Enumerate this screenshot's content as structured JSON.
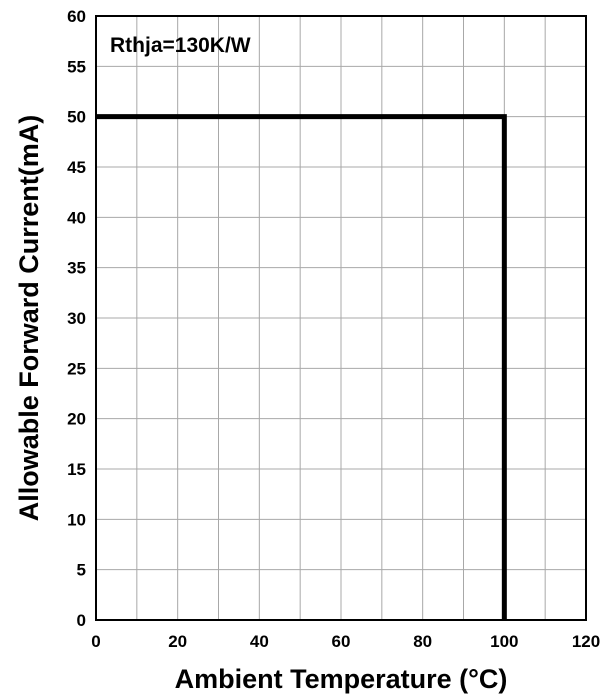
{
  "chart_data": {
    "type": "line",
    "xlabel": "Ambient Temperature (°C)",
    "ylabel": "Allowable Forward Current(mA)",
    "xlim": [
      0,
      120
    ],
    "ylim": [
      0,
      60
    ],
    "xticks": [
      "0",
      "20",
      "40",
      "60",
      "80",
      "100",
      "120"
    ],
    "yticks": [
      "0",
      "5",
      "10",
      "15",
      "20",
      "25",
      "30",
      "35",
      "40",
      "45",
      "50",
      "55",
      "60"
    ],
    "grid": true,
    "annotation": "Rthja=130K/W",
    "series": [
      {
        "x": [
          0,
          100,
          100
        ],
        "y": [
          50,
          50,
          0
        ],
        "color": "#000000"
      }
    ]
  }
}
